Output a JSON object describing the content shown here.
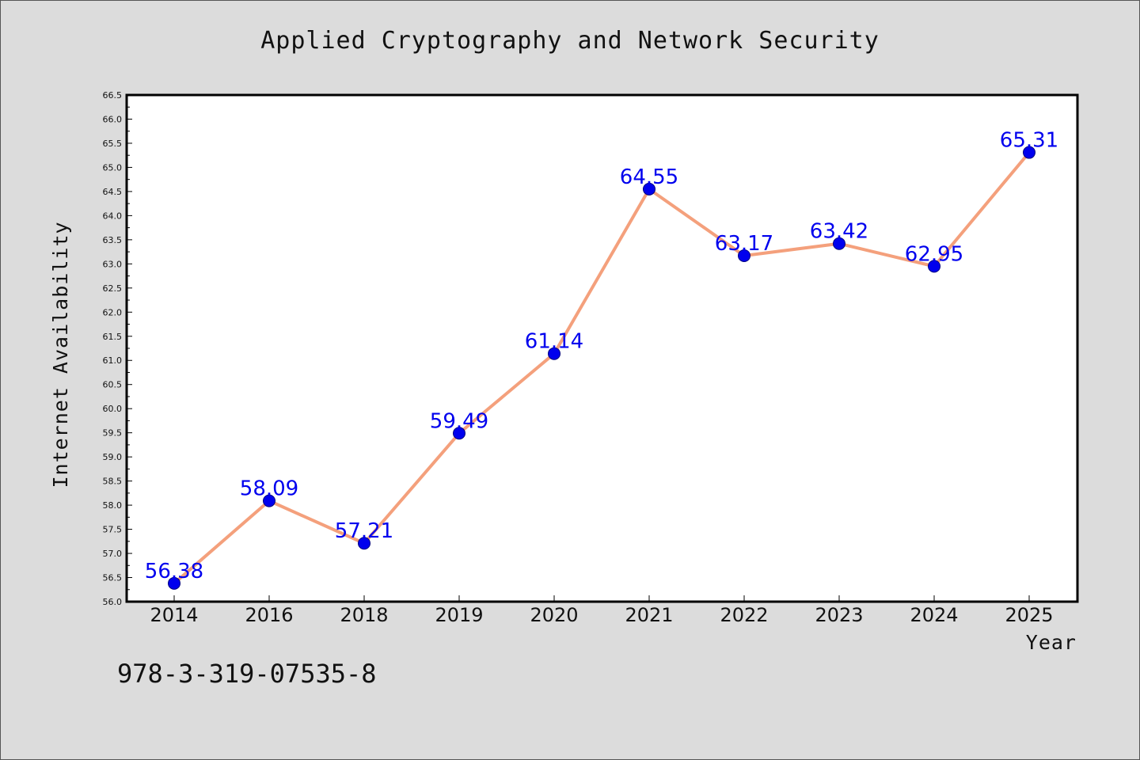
{
  "chart_data": {
    "type": "line",
    "title": "Applied Cryptography and Network Security",
    "xlabel": "Year",
    "ylabel": "Internet Availability",
    "categories": [
      "2014",
      "2016",
      "2018",
      "2019",
      "2020",
      "2021",
      "2022",
      "2023",
      "2024",
      "2025"
    ],
    "series": [
      {
        "values": [
          56.38,
          58.09,
          57.21,
          59.49,
          61.14,
          64.55,
          63.17,
          63.42,
          62.95,
          65.31
        ],
        "labels": [
          "56.38",
          "58.09",
          "57.21",
          "59.49",
          "61.14",
          "64.55",
          "63.17",
          "63.42",
          "62.95",
          "65.31"
        ]
      }
    ],
    "ylim": [
      56.0,
      66.5
    ],
    "ytick_step": 0.5,
    "yticks": [
      "56.0",
      "56.5",
      "57.0",
      "57.5",
      "58.0",
      "58.5",
      "59.0",
      "59.5",
      "60.0",
      "60.5",
      "61.0",
      "61.5",
      "62.0",
      "62.5",
      "63.0",
      "63.5",
      "64.0",
      "64.5",
      "65.0",
      "65.5",
      "66.0",
      "66.5"
    ],
    "grid": false,
    "legend": "none",
    "colors": {
      "line": "#f4a07c",
      "marker": "#0000ee",
      "marker_edge": "#000080",
      "data_label": "#0000ee",
      "plot_background": "#ffffff",
      "figure_background": "#dcdcdc"
    }
  },
  "footer": {
    "isbn": "978-3-319-07535-8"
  }
}
